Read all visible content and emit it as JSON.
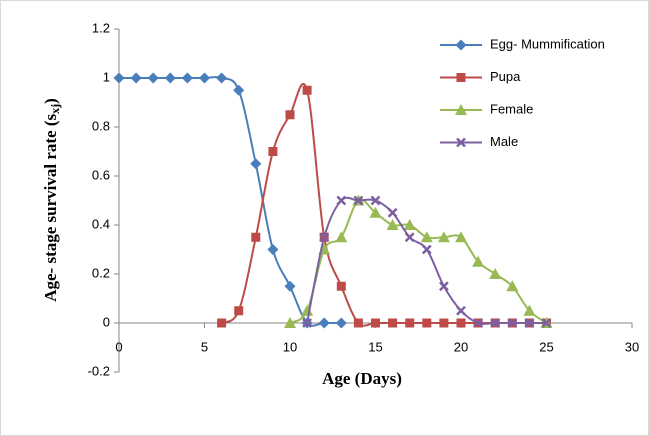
{
  "chart_data": {
    "type": "line",
    "x_label": "Age (Days)",
    "y_label": {
      "text": "Age- stage survival rate (s",
      "subscript": "xj",
      "suffix": ")"
    },
    "xlim": [
      0,
      30
    ],
    "xticks": [
      0,
      5,
      10,
      15,
      20,
      25,
      30
    ],
    "ylim": [
      -0.2,
      1.2
    ],
    "yticks": [
      -0.2,
      0,
      0.2,
      0.4,
      0.6,
      0.8,
      1,
      1.2
    ],
    "grid": false,
    "legend": "top-right",
    "series": [
      {
        "name": "Egg- Mummification",
        "color": "#4a7ebb",
        "marker": "diamond",
        "x": [
          0,
          1,
          2,
          3,
          4,
          5,
          6,
          7,
          8,
          9,
          10,
          11,
          12,
          13
        ],
        "values": [
          1,
          1,
          1,
          1,
          1,
          1,
          1,
          0.95,
          0.65,
          0.3,
          0.15,
          0,
          0,
          0
        ]
      },
      {
        "name": "Pupa",
        "color": "#be4b48",
        "marker": "square",
        "x": [
          6,
          7,
          8,
          9,
          10,
          11,
          12,
          13,
          14,
          15,
          16,
          17,
          18,
          19,
          20,
          21,
          22,
          23,
          24,
          25
        ],
        "values": [
          0,
          0.05,
          0.35,
          0.7,
          0.85,
          0.95,
          0.35,
          0.15,
          0,
          0,
          0,
          0,
          0,
          0,
          0,
          0,
          0,
          0,
          0,
          0
        ]
      },
      {
        "name": "Female",
        "color": "#98b954",
        "marker": "triangle",
        "x": [
          10,
          11,
          12,
          13,
          14,
          15,
          16,
          17,
          18,
          19,
          20,
          21,
          22,
          23,
          24,
          25
        ],
        "values": [
          0,
          0.05,
          0.3,
          0.35,
          0.5,
          0.45,
          0.4,
          0.4,
          0.35,
          0.35,
          0.35,
          0.25,
          0.2,
          0.15,
          0.05,
          0
        ]
      },
      {
        "name": "Male",
        "color": "#7d5fa0",
        "marker": "x",
        "x": [
          11,
          12,
          13,
          14,
          15,
          16,
          17,
          18,
          19,
          20,
          21,
          22,
          23,
          24,
          25
        ],
        "values": [
          0,
          0.35,
          0.5,
          0.5,
          0.5,
          0.45,
          0.35,
          0.3,
          0.15,
          0.05,
          0,
          0,
          0,
          0,
          0
        ]
      }
    ]
  }
}
